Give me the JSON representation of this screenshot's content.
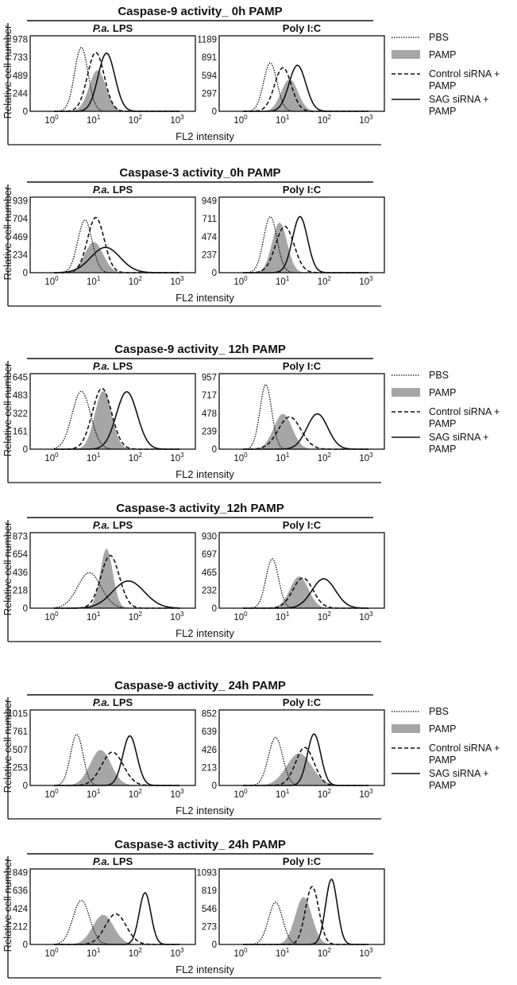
{
  "legend": {
    "entries": [
      {
        "key": "PBS",
        "lines": [
          "PBS"
        ],
        "style": "dotted"
      },
      {
        "key": "PAMP",
        "lines": [
          "PAMP"
        ],
        "style": "filled",
        "color": "#a6a6a6"
      },
      {
        "key": "Control",
        "lines": [
          "Control siRNA +",
          "PAMP"
        ],
        "style": "dashed"
      },
      {
        "key": "SAG",
        "lines": [
          "SAG siRNA +",
          "PAMP"
        ],
        "style": "solid"
      }
    ]
  },
  "chart_data": [
    {
      "type": "area",
      "title": "Caspase-9 activity_ 0h PAMP",
      "ylabel": "Relative cell number",
      "xlabel": "FL2 intensity",
      "x_scale": "log",
      "xlim": [
        1,
        1000
      ],
      "x_ticks": [
        "0",
        "1",
        "2",
        "3"
      ],
      "panels": [
        {
          "label_prefix": "P.a.",
          "label_suffix": " LPS",
          "y_ticks": [
            0,
            244,
            489,
            733,
            978
          ],
          "series": [
            {
              "name": "PBS",
              "peak_x": 4.5,
              "peak_y": 870,
              "width": 0.16
            },
            {
              "name": "PAMP",
              "peak_x": 11,
              "peak_y": 560,
              "width": 0.2
            },
            {
              "name": "Control siRNA + PAMP",
              "peak_x": 10,
              "peak_y": 800,
              "width": 0.2
            },
            {
              "name": "SAG siRNA + PAMP",
              "peak_x": 18,
              "peak_y": 790,
              "width": 0.2
            }
          ]
        },
        {
          "label_prefix": "",
          "label_suffix": "Poly I:C",
          "y_ticks": [
            0,
            297,
            594,
            891,
            1189
          ],
          "series": [
            {
              "name": "PBS",
              "peak_x": 4.5,
              "peak_y": 800,
              "width": 0.16
            },
            {
              "name": "PAMP",
              "peak_x": 13,
              "peak_y": 530,
              "width": 0.2
            },
            {
              "name": "Control siRNA + PAMP",
              "peak_x": 9,
              "peak_y": 720,
              "width": 0.2
            },
            {
              "name": "SAG siRNA + PAMP",
              "peak_x": 20,
              "peak_y": 760,
              "width": 0.2
            }
          ]
        }
      ]
    },
    {
      "type": "area",
      "title": "Caspase-3 activity_0h PAMP",
      "ylabel": "Relative cell number",
      "xlabel": "FL2 intensity",
      "x_scale": "log",
      "xlim": [
        1,
        1000
      ],
      "x_ticks": [
        "0",
        "1",
        "2",
        "3"
      ],
      "panels": [
        {
          "label_prefix": "P.a.",
          "label_suffix": " LPS",
          "y_ticks": [
            0,
            234,
            469,
            704,
            939
          ],
          "series": [
            {
              "name": "PBS",
              "peak_x": 5.5,
              "peak_y": 690,
              "width": 0.17
            },
            {
              "name": "PAMP",
              "peak_x": 9,
              "peak_y": 400,
              "width": 0.22
            },
            {
              "name": "Control siRNA + PAMP",
              "peak_x": 10,
              "peak_y": 720,
              "width": 0.2
            },
            {
              "name": "SAG siRNA + PAMP",
              "peak_x": 17,
              "peak_y": 330,
              "width": 0.35
            }
          ]
        },
        {
          "label_prefix": "",
          "label_suffix": "Poly I:C",
          "y_ticks": [
            0,
            237,
            474,
            711,
            949
          ],
          "series": [
            {
              "name": "PBS",
              "peak_x": 4.5,
              "peak_y": 740,
              "width": 0.16
            },
            {
              "name": "PAMP",
              "peak_x": 7.5,
              "peak_y": 660,
              "width": 0.18
            },
            {
              "name": "Control siRNA + PAMP",
              "peak_x": 10,
              "peak_y": 610,
              "width": 0.22
            },
            {
              "name": "SAG siRNA + PAMP",
              "peak_x": 23,
              "peak_y": 740,
              "width": 0.18
            }
          ]
        }
      ]
    },
    {
      "type": "area",
      "title": "Caspase-9 activity_ 12h PAMP",
      "ylabel": "Relative cell number",
      "xlabel": "FL2 intensity",
      "x_scale": "log",
      "xlim": [
        1,
        1000
      ],
      "x_ticks": [
        "0",
        "1",
        "2",
        "3"
      ],
      "panels": [
        {
          "label_prefix": "P.a.",
          "label_suffix": " LPS",
          "y_ticks": [
            0,
            161,
            322,
            483,
            645
          ],
          "series": [
            {
              "name": "PBS",
              "peak_x": 4.5,
              "peak_y": 520,
              "width": 0.22
            },
            {
              "name": "PAMP",
              "peak_x": 15,
              "peak_y": 520,
              "width": 0.2
            },
            {
              "name": "Control siRNA + PAMP",
              "peak_x": 14,
              "peak_y": 545,
              "width": 0.23
            },
            {
              "name": "SAG siRNA + PAMP",
              "peak_x": 55,
              "peak_y": 515,
              "width": 0.25
            }
          ]
        },
        {
          "label_prefix": "",
          "label_suffix": "Poly I:C",
          "y_ticks": [
            0,
            239,
            478,
            717,
            957
          ],
          "series": [
            {
              "name": "PBS",
              "peak_x": 3.5,
              "peak_y": 860,
              "width": 0.14
            },
            {
              "name": "PAMP",
              "peak_x": 9,
              "peak_y": 470,
              "width": 0.22
            },
            {
              "name": "Control siRNA + PAMP",
              "peak_x": 13,
              "peak_y": 430,
              "width": 0.27
            },
            {
              "name": "SAG siRNA + PAMP",
              "peak_x": 60,
              "peak_y": 470,
              "width": 0.25
            }
          ]
        }
      ]
    },
    {
      "type": "area",
      "title": "Caspase-3 activity_12h PAMP",
      "ylabel": "Relative cell number",
      "xlabel": "FL2 intensity",
      "x_scale": "log",
      "xlim": [
        1,
        1000
      ],
      "x_ticks": [
        "0",
        "1",
        "2",
        "3"
      ],
      "panels": [
        {
          "label_prefix": "P.a.",
          "label_suffix": " LPS",
          "y_ticks": [
            0,
            218,
            436,
            654,
            873
          ],
          "series": [
            {
              "name": "PBS",
              "peak_x": 7,
              "peak_y": 430,
              "width": 0.28
            },
            {
              "name": "PAMP",
              "peak_x": 18,
              "peak_y": 720,
              "width": 0.15
            },
            {
              "name": "Control siRNA + PAMP",
              "peak_x": 22,
              "peak_y": 640,
              "width": 0.22
            },
            {
              "name": "SAG siRNA + PAMP",
              "peak_x": 60,
              "peak_y": 330,
              "width": 0.38
            }
          ]
        },
        {
          "label_prefix": "",
          "label_suffix": "Poly I:C",
          "y_ticks": [
            0,
            232,
            465,
            697,
            930
          ],
          "series": [
            {
              "name": "PBS",
              "peak_x": 5,
              "peak_y": 640,
              "width": 0.15
            },
            {
              "name": "PAMP",
              "peak_x": 22,
              "peak_y": 410,
              "width": 0.22
            },
            {
              "name": "Control siRNA + PAMP",
              "peak_x": 27,
              "peak_y": 390,
              "width": 0.24
            },
            {
              "name": "SAG siRNA + PAMP",
              "peak_x": 85,
              "peak_y": 380,
              "width": 0.28
            }
          ]
        }
      ]
    },
    {
      "type": "area",
      "title": "Caspase-9 activity_ 24h PAMP",
      "ylabel": "Relative cell number",
      "xlabel": "FL2 intensity",
      "x_scale": "log",
      "xlim": [
        1,
        1000
      ],
      "x_ticks": [
        "0",
        "1",
        "2",
        "3"
      ],
      "panels": [
        {
          "label_prefix": "P.a.",
          "label_suffix": " LPS",
          "y_ticks": [
            0,
            253,
            507,
            761,
            1015
          ],
          "series": [
            {
              "name": "PBS",
              "peak_x": 3.5,
              "peak_y": 720,
              "width": 0.15
            },
            {
              "name": "PAMP",
              "peak_x": 13,
              "peak_y": 500,
              "width": 0.25
            },
            {
              "name": "Control siRNA + PAMP",
              "peak_x": 25,
              "peak_y": 470,
              "width": 0.26
            },
            {
              "name": "SAG siRNA + PAMP",
              "peak_x": 65,
              "peak_y": 700,
              "width": 0.17
            }
          ]
        },
        {
          "label_prefix": "",
          "label_suffix": "Poly I:C",
          "y_ticks": [
            0,
            213,
            426,
            639,
            852
          ],
          "series": [
            {
              "name": "PBS",
              "peak_x": 6,
              "peak_y": 570,
              "width": 0.17
            },
            {
              "name": "PAMP",
              "peak_x": 22,
              "peak_y": 380,
              "width": 0.3
            },
            {
              "name": "Control siRNA + PAMP",
              "peak_x": 30,
              "peak_y": 450,
              "width": 0.22
            },
            {
              "name": "SAG siRNA + PAMP",
              "peak_x": 50,
              "peak_y": 610,
              "width": 0.16
            }
          ]
        }
      ]
    },
    {
      "type": "area",
      "title": "Caspase-3 activity_ 24h PAMP",
      "ylabel": "Relative cell number",
      "xlabel": "FL2 intensity",
      "x_scale": "log",
      "xlim": [
        1,
        1000
      ],
      "x_ticks": [
        "0",
        "1",
        "2",
        "3"
      ],
      "panels": [
        {
          "label_prefix": "P.a.",
          "label_suffix": " LPS",
          "y_ticks": [
            0,
            212,
            424,
            636,
            849
          ],
          "series": [
            {
              "name": "PBS",
              "peak_x": 4.5,
              "peak_y": 520,
              "width": 0.2
            },
            {
              "name": "PAMP",
              "peak_x": 15,
              "peak_y": 350,
              "width": 0.25
            },
            {
              "name": "Control siRNA + PAMP",
              "peak_x": 30,
              "peak_y": 360,
              "width": 0.25
            },
            {
              "name": "SAG siRNA + PAMP",
              "peak_x": 150,
              "peak_y": 610,
              "width": 0.14
            }
          ]
        },
        {
          "label_prefix": "",
          "label_suffix": "Poly I:C",
          "y_ticks": [
            0,
            273,
            546,
            819,
            1093
          ],
          "series": [
            {
              "name": "PBS",
              "peak_x": 6,
              "peak_y": 640,
              "width": 0.17
            },
            {
              "name": "PAMP",
              "peak_x": 28,
              "peak_y": 720,
              "width": 0.2
            },
            {
              "name": "Control siRNA + PAMP",
              "peak_x": 45,
              "peak_y": 880,
              "width": 0.16
            },
            {
              "name": "SAG siRNA + PAMP",
              "peak_x": 130,
              "peak_y": 990,
              "width": 0.14
            }
          ]
        }
      ]
    }
  ]
}
